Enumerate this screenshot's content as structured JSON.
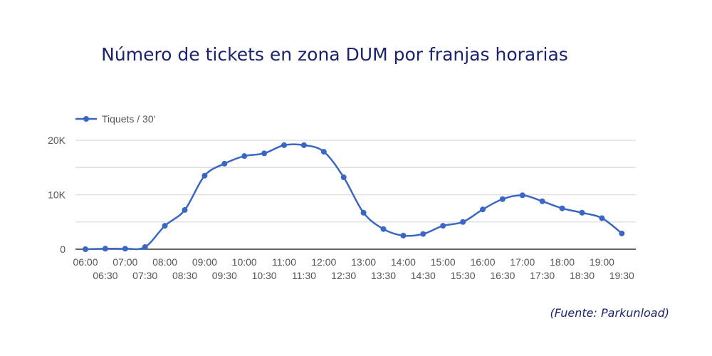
{
  "title": "Número de tickets en zona DUM por franjas horarias",
  "source": "(Fuente: Parkunload)",
  "colors": {
    "series": "#3b67c4",
    "title": "#1c2470",
    "grid": "#e0e0e0",
    "axis": "#333333"
  },
  "chart_data": {
    "type": "line",
    "title": "Número de tickets en zona DUM por franjas horarias",
    "xlabel": "",
    "ylabel": "",
    "ylim": [
      0,
      20000
    ],
    "y_ticks": [
      "0",
      "10K",
      "20K"
    ],
    "grid": true,
    "legend_position": "top-left",
    "x": [
      "06:00",
      "06:30",
      "07:00",
      "07:30",
      "08:00",
      "08:30",
      "09:00",
      "09:30",
      "10:00",
      "10:30",
      "11:00",
      "11:30",
      "12:00",
      "12:30",
      "13:00",
      "13:30",
      "14:00",
      "14:30",
      "15:00",
      "15:30",
      "16:00",
      "16:30",
      "17:00",
      "17:30",
      "18:00",
      "18:30",
      "19:00",
      "19:30"
    ],
    "series": [
      {
        "name": "Tiquets / 30'",
        "values": [
          0,
          100,
          100,
          400,
          4300,
          7200,
          13500,
          15700,
          17100,
          17600,
          19100,
          19100,
          17900,
          13200,
          6700,
          3700,
          2500,
          2800,
          4300,
          5000,
          7300,
          9200,
          9900,
          8800,
          7500,
          6700,
          5700,
          2900
        ]
      }
    ]
  }
}
